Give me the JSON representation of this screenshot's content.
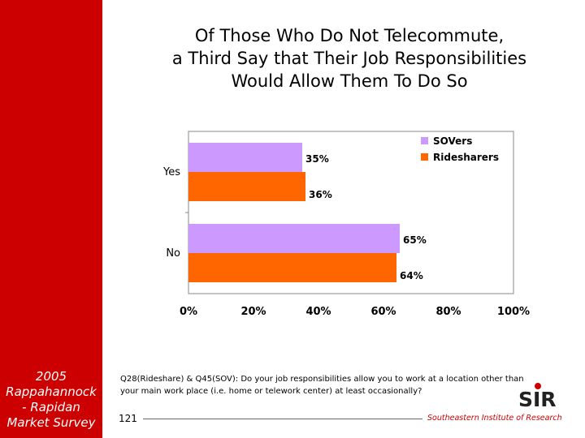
{
  "slide": {
    "title": "Of Those Who Do Not Telecommute,\na Third Say that Their Job Responsibilities\nWould Allow Them To Do So",
    "sidebar_caption": "2005\nRappahannock\n- Rapidan\nMarket Survey",
    "footnote": "Q28(Rideshare) & Q45(SOV): Do your job responsibilities allow you to work at a location other than your main work place (i.e. home or telework center) at least occasionally?",
    "page_number": "121",
    "organization": "Southeastern Institute of Research",
    "logo_text": "SIR"
  },
  "colors": {
    "sidebar": "#cc0000",
    "sovers": "#cc99ff",
    "ridesharers": "#ff6600",
    "organization_text": "#cc0000"
  },
  "chart_data": {
    "type": "bar",
    "orientation": "horizontal",
    "categories": [
      "Yes",
      "No"
    ],
    "series": [
      {
        "name": "SOVers",
        "values": [
          35,
          65
        ],
        "labels": [
          "35%",
          "65%"
        ],
        "color": "#cc99ff"
      },
      {
        "name": "Ridesharers",
        "values": [
          36,
          64
        ],
        "labels": [
          "36%",
          "64%"
        ],
        "color": "#ff6600"
      }
    ],
    "xlim": [
      0,
      100
    ],
    "xticks": [
      0,
      20,
      40,
      60,
      80,
      100
    ],
    "xtick_labels": [
      "0%",
      "20%",
      "40%",
      "60%",
      "80%",
      "100%"
    ],
    "grid": false,
    "legend_position": "top-right"
  }
}
